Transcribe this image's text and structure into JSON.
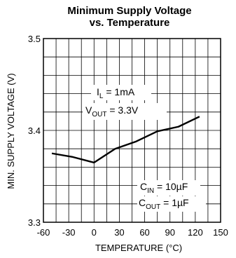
{
  "chart_data": {
    "type": "line",
    "title_line1": "Minimum Supply Voltage",
    "title_line2": "vs. Temperature",
    "xlabel": "TEMPERATURE (°C)",
    "ylabel": "MIN. SUPPLY VOLTAGE (V)",
    "xlim": [
      -60,
      150
    ],
    "ylim": [
      3.3,
      3.5
    ],
    "x_ticks": [
      "-60",
      "-30",
      "0",
      "30",
      "60",
      "90",
      "120",
      "150"
    ],
    "y_ticks": [
      "3.3",
      "3.4",
      "3.5"
    ],
    "grid": true,
    "series": [
      {
        "x": [
          -50,
          -25,
          0,
          25,
          50,
          75,
          100,
          125
        ],
        "y": [
          3.375,
          3.371,
          3.365,
          3.38,
          3.388,
          3.399,
          3.404,
          3.415
        ]
      }
    ],
    "annotations": {
      "il_main": "I",
      "il_sub": "L",
      "il_rest": " = 1mA",
      "vout_main": "V",
      "vout_sub": "OUT",
      "vout_rest": " = 3.3V",
      "cin_main": "C",
      "cin_sub": "IN",
      "cin_rest": " = 10µF",
      "cout_main": "C",
      "cout_sub": "OUT",
      "cout_rest": " = 1µF"
    }
  }
}
